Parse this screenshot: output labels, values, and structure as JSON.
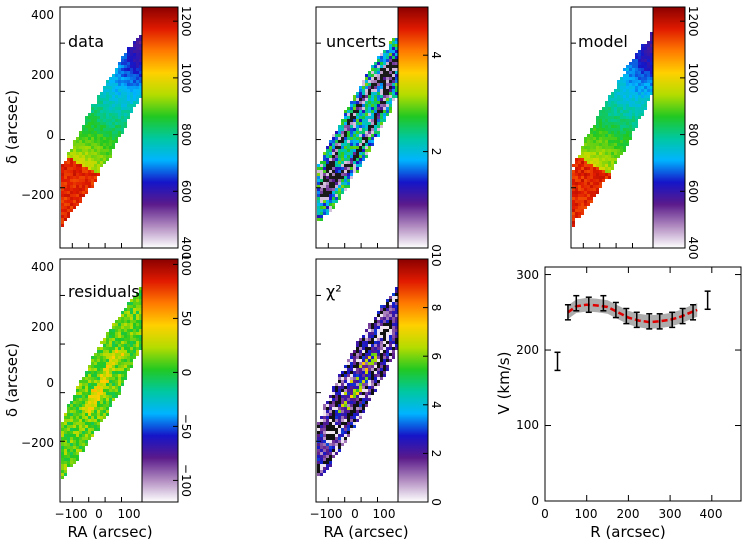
{
  "colormap": [
    "#ffffff",
    "#b08ac0",
    "#5a1a8a",
    "#1515c8",
    "#00b4ff",
    "#00c8a0",
    "#22c822",
    "#b4dc00",
    "#ffd000",
    "#ff7a00",
    "#e01a00",
    "#8a0000"
  ],
  "axis_labels": {
    "ra": "RA (arcsec)",
    "dec": "δ (arcsec)"
  },
  "panels": [
    {
      "id": "data",
      "title": "data",
      "type": "vmap",
      "cbar_ticks": [
        "400",
        "600",
        "800",
        "1000",
        "1200"
      ],
      "cbar_range": [
        400,
        1250
      ],
      "y_ticks": [
        "400",
        "200",
        "0",
        "−200"
      ],
      "x_ticks": []
    },
    {
      "id": "uncerts",
      "title": "uncerts",
      "type": "noise",
      "cbar_ticks": [
        "0",
        "2",
        "4"
      ],
      "cbar_range": [
        0,
        5
      ],
      "y_ticks": [],
      "x_ticks": []
    },
    {
      "id": "model",
      "title": "model",
      "type": "vmap",
      "cbar_ticks": [
        "400",
        "600",
        "800",
        "1000",
        "1200"
      ],
      "cbar_range": [
        400,
        1250
      ],
      "y_ticks": [],
      "x_ticks": []
    },
    {
      "id": "residuals",
      "title": "residuals",
      "type": "resid",
      "cbar_ticks": [
        "−100",
        "−50",
        "0",
        "50",
        "100"
      ],
      "cbar_range": [
        -120,
        105
      ],
      "y_ticks": [
        "400",
        "200",
        "0",
        "−200"
      ],
      "x_ticks": [
        "−100",
        "0",
        "100"
      ]
    },
    {
      "id": "chi2",
      "title": "χ²",
      "type": "chi",
      "cbar_ticks": [
        "0",
        "2",
        "4",
        "6",
        "8",
        "10"
      ],
      "cbar_range": [
        0,
        10
      ],
      "y_ticks": [],
      "x_ticks": [
        "−100",
        "0",
        "100"
      ]
    }
  ],
  "chart_data": {
    "type": "line",
    "xlabel": "R (arcsec)",
    "ylabel": "V (km/s)",
    "xlim": [
      0,
      470
    ],
    "ylim": [
      0,
      310
    ],
    "x_ticks": [
      "0",
      "100",
      "200",
      "300",
      "400"
    ],
    "y_ticks": [
      "0",
      "100",
      "200",
      "300"
    ],
    "points": [
      {
        "r": 30,
        "v": 185,
        "err": 12
      },
      {
        "r": 55,
        "v": 250,
        "err": 10
      },
      {
        "r": 75,
        "v": 262,
        "err": 10
      },
      {
        "r": 105,
        "v": 260,
        "err": 10
      },
      {
        "r": 140,
        "v": 262,
        "err": 10
      },
      {
        "r": 170,
        "v": 253,
        "err": 10
      },
      {
        "r": 195,
        "v": 245,
        "err": 10
      },
      {
        "r": 220,
        "v": 240,
        "err": 10
      },
      {
        "r": 250,
        "v": 238,
        "err": 10
      },
      {
        "r": 275,
        "v": 238,
        "err": 10
      },
      {
        "r": 305,
        "v": 240,
        "err": 10
      },
      {
        "r": 330,
        "v": 245,
        "err": 10
      },
      {
        "r": 355,
        "v": 250,
        "err": 10
      },
      {
        "r": 390,
        "v": 266,
        "err": 12
      }
    ],
    "model_curve": {
      "r": [
        55,
        75,
        100,
        125,
        150,
        175,
        200,
        225,
        250,
        275,
        300,
        325,
        350,
        365
      ],
      "v": [
        250,
        258,
        260,
        259,
        257,
        250,
        243,
        239,
        237,
        238,
        240,
        244,
        250,
        253
      ]
    },
    "band_width": 9
  }
}
